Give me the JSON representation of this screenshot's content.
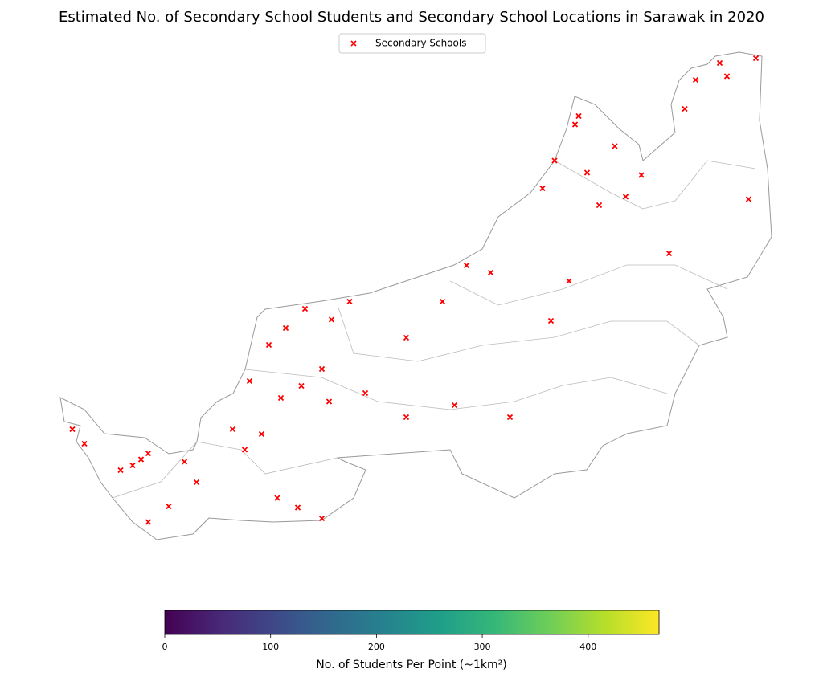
{
  "chart_data": {
    "type": "map",
    "title": "Estimated No. of Secondary School Students and Secondary School Locations in Sarawak in 2020",
    "xlim": [
      109.6,
      115.7
    ],
    "ylim": [
      0.8,
      5.1
    ],
    "legend": {
      "label": "Secondary Schools",
      "color": "#ff0000",
      "corner": "upper center"
    },
    "schools": {
      "lon": [
        110.37,
        110.3,
        110.43,
        110.2,
        109.9,
        109.8,
        110.73,
        110.83,
        110.6,
        110.43,
        111.5,
        111.67,
        111.87,
        111.23,
        111.37,
        111.53,
        111.7,
        111.87,
        111.93,
        112.23,
        112.57,
        112.97,
        113.43,
        112.57,
        112.87,
        113.07,
        113.27,
        113.77,
        113.92,
        113.7,
        113.8,
        113.97,
        114.0,
        114.3,
        114.07,
        114.17,
        114.39,
        114.52,
        114.75,
        115.41,
        114.88,
        114.97,
        115.23,
        115.47,
        115.17,
        111.73,
        111.57,
        111.43,
        111.27,
        111.13,
        112.1,
        111.95
      ],
      "lat": [
        1.72,
        1.67,
        1.77,
        1.63,
        1.85,
        1.97,
        1.7,
        1.53,
        1.33,
        1.2,
        1.4,
        1.32,
        1.23,
        1.8,
        1.93,
        2.23,
        2.33,
        2.47,
        2.2,
        2.27,
        2.07,
        2.17,
        2.07,
        2.73,
        3.03,
        3.33,
        3.27,
        2.87,
        3.2,
        3.97,
        4.2,
        4.5,
        4.57,
        4.32,
        4.1,
        3.83,
        3.9,
        4.08,
        3.43,
        3.88,
        4.63,
        4.87,
        4.9,
        5.05,
        5.01,
        2.97,
        2.81,
        2.67,
        2.37,
        1.97,
        3.03,
        2.88
      ]
    },
    "colorbar": {
      "label": "No. of Students Per Point (~1km²)",
      "colormap": "viridis",
      "clim": [
        0,
        467
      ],
      "ticks": [
        0,
        100,
        200,
        300,
        400
      ]
    }
  }
}
